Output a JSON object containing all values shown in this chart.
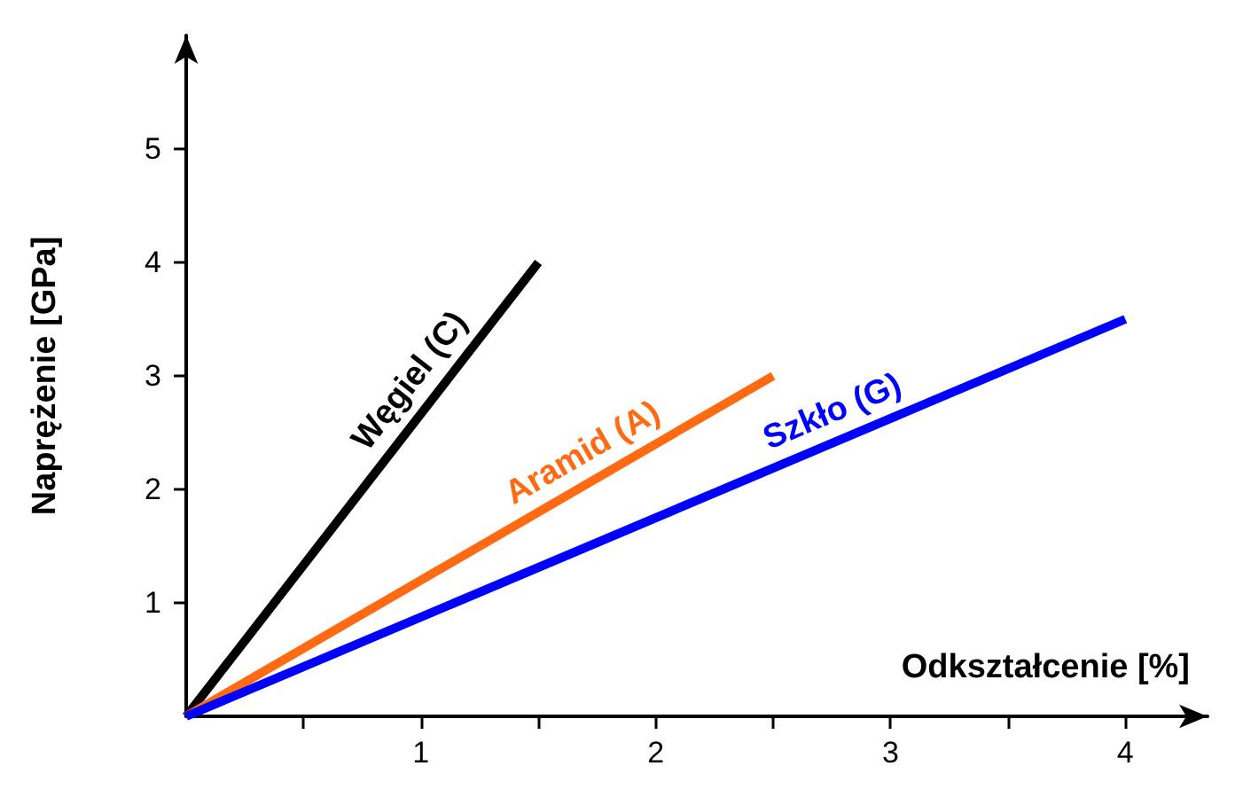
{
  "chart_data": {
    "type": "line",
    "xlabel": "Odkształcenie [%]",
    "ylabel": "Naprężenie [GPa]",
    "xlim": [
      0,
      4.35
    ],
    "ylim": [
      0,
      6
    ],
    "xticks": [
      {
        "value": 0.5,
        "label": null
      },
      1,
      {
        "value": 1.5,
        "label": null
      },
      2,
      {
        "value": 2.5,
        "label": null
      },
      3,
      {
        "value": 3.5,
        "label": null
      },
      4
    ],
    "yticks": [
      1,
      2,
      3,
      4,
      5
    ],
    "series": [
      {
        "name": "Węgiel (C)",
        "color": "#000000",
        "x": [
          0,
          1.5
        ],
        "values": [
          0,
          4
        ]
      },
      {
        "name": "Aramid (A)",
        "color": "#ff6a13",
        "x": [
          0,
          2.5
        ],
        "values": [
          0,
          3
        ]
      },
      {
        "name": "Szkło (G)",
        "color": "#0000ff",
        "x": [
          0,
          4
        ],
        "values": [
          0,
          3.5
        ]
      }
    ],
    "legend": false,
    "grid": false,
    "marker": "none",
    "line_style": "solid"
  }
}
